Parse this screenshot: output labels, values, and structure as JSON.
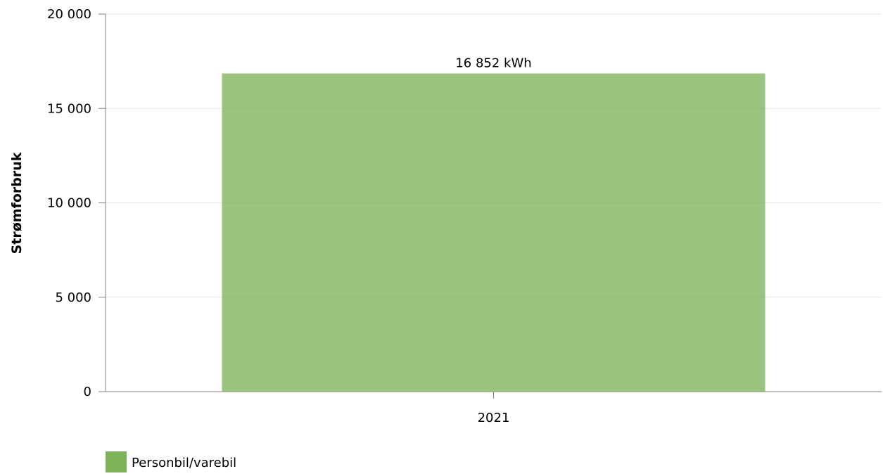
{
  "chart_data": {
    "type": "bar",
    "title": "",
    "xlabel": "",
    "ylabel": "Strømforbruk",
    "categories": [
      "2021"
    ],
    "series": [
      {
        "name": "Personbil/varebil",
        "values": [
          16852
        ],
        "color": "#7fb35a",
        "data_labels": [
          "16 852 kWh"
        ]
      }
    ],
    "ylim": [
      0,
      20000
    ],
    "yticks": [
      0,
      5000,
      10000,
      15000,
      20000
    ],
    "ytick_labels": [
      "0",
      "5 000",
      "10 000",
      "15 000",
      "20 000"
    ],
    "grid": true,
    "legend": "bottom-left"
  }
}
